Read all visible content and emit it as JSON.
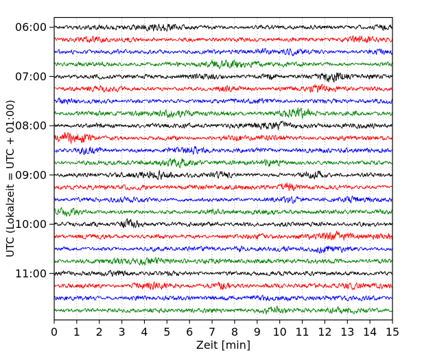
{
  "chart_data": {
    "type": "line",
    "subtype": "helicorder-seismogram-noise",
    "title": "",
    "xlabel": "Zeit  [min]",
    "ylabel": "UTC (Lokalzeit = UTC + 01:00)",
    "xlim": [
      0,
      15
    ],
    "x_tick_labels": [
      "0",
      "1",
      "2",
      "3",
      "4",
      "5",
      "6",
      "7",
      "8",
      "9",
      "10",
      "11",
      "12",
      "13",
      "14",
      "15"
    ],
    "minutes_per_row": 15,
    "grid": "vertical dotted gridline at every minute",
    "grid_color": "#999999",
    "legend": "none",
    "color_cycle": [
      "#000000",
      "#ff0000",
      "#0000ff",
      "#008000"
    ],
    "y_tick_labels": [
      "06:00",
      "07:00",
      "08:00",
      "09:00",
      "10:00",
      "11:00"
    ],
    "rows": [
      {
        "start_utc": "06:00",
        "color": "#000000"
      },
      {
        "start_utc": "06:15",
        "color": "#ff0000"
      },
      {
        "start_utc": "06:30",
        "color": "#0000ff"
      },
      {
        "start_utc": "06:45",
        "color": "#008000"
      },
      {
        "start_utc": "07:00",
        "color": "#000000"
      },
      {
        "start_utc": "07:15",
        "color": "#ff0000"
      },
      {
        "start_utc": "07:30",
        "color": "#0000ff"
      },
      {
        "start_utc": "07:45",
        "color": "#008000"
      },
      {
        "start_utc": "08:00",
        "color": "#000000"
      },
      {
        "start_utc": "08:15",
        "color": "#ff0000"
      },
      {
        "start_utc": "08:30",
        "color": "#0000ff"
      },
      {
        "start_utc": "08:45",
        "color": "#008000"
      },
      {
        "start_utc": "09:00",
        "color": "#000000"
      },
      {
        "start_utc": "09:15",
        "color": "#ff0000"
      },
      {
        "start_utc": "09:30",
        "color": "#0000ff"
      },
      {
        "start_utc": "09:45",
        "color": "#008000"
      },
      {
        "start_utc": "10:00",
        "color": "#000000"
      },
      {
        "start_utc": "10:15",
        "color": "#ff0000"
      },
      {
        "start_utc": "10:30",
        "color": "#0000ff"
      },
      {
        "start_utc": "10:45",
        "color": "#008000"
      },
      {
        "start_utc": "11:00",
        "color": "#000000"
      },
      {
        "start_utc": "11:15",
        "color": "#ff0000"
      },
      {
        "start_utc": "11:30",
        "color": "#0000ff"
      },
      {
        "start_utc": "11:45",
        "color": "#008000"
      }
    ],
    "signal": "continuous random seismic background noise; no labeled events or amplitude scale shown"
  }
}
